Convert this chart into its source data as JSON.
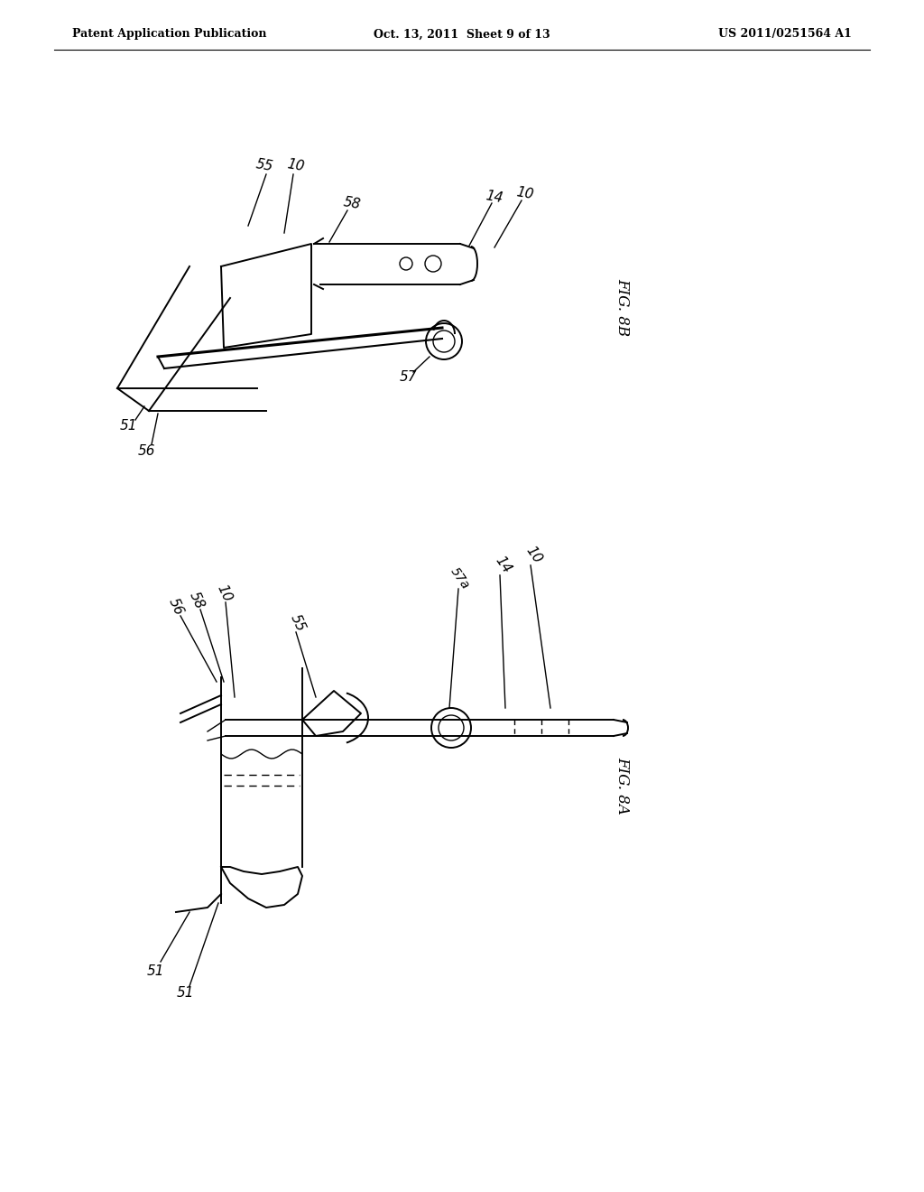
{
  "background_color": "#ffffff",
  "header_left": "Patent Application Publication",
  "header_center": "Oct. 13, 2011  Sheet 9 of 13",
  "header_right": "US 2011/0251564 A1",
  "fig_label_top": "FIG. 8B",
  "fig_label_bottom": "FIG. 8A"
}
